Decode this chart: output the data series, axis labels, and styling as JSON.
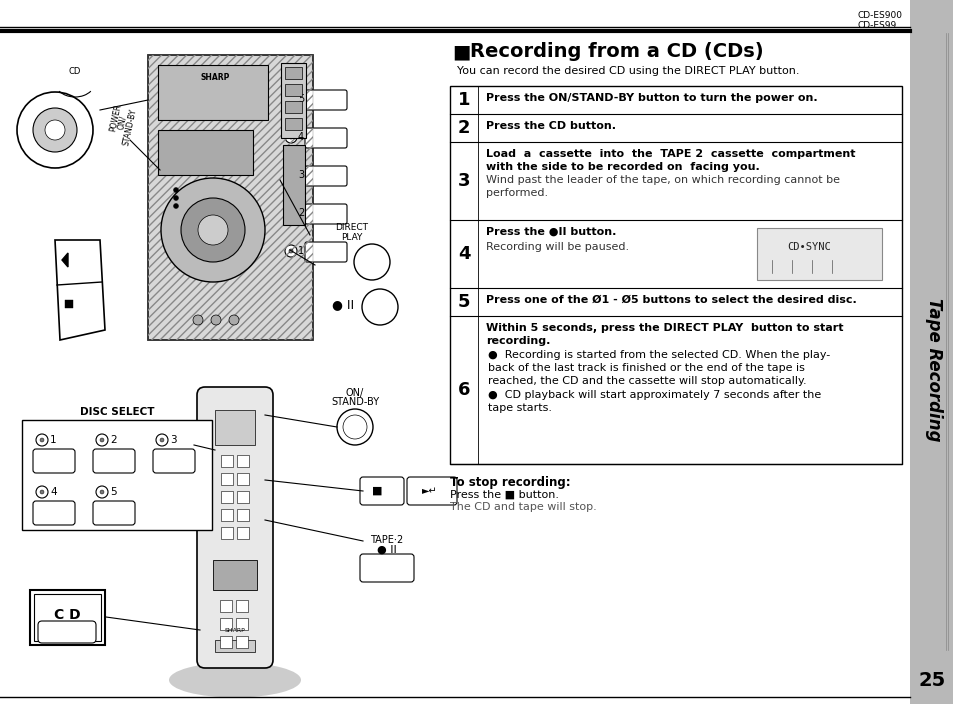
{
  "title": "Recording from a CD (CDs)",
  "subtitle": "You can record the desired CD using the DIRECT PLAY button.",
  "model_top_right": [
    "CD-ES900",
    "CD-ES99"
  ],
  "page_number": "25",
  "side_label": "Tape Recording",
  "stop_recording_title": "To stop recording:",
  "stop_recording_lines": [
    "Press the ■ button.",
    "The CD and tape will stop."
  ],
  "bg_color": "#ffffff",
  "text_color": "#000000",
  "sidebar_color": "#b8b8b8",
  "step1_bold": "Press the ON/STAND-BY button to turn the power on.",
  "step2_bold": "Press the CD button.",
  "step3_bold": "Load  a  cassette  into  the  TAPE 2  cassette  compartment\nwith the side to be recorded on  facing you.",
  "step3_normal": "Wind past the leader of the tape, on which recording cannot be\nperformed.",
  "step4_bold": "Press the ●II button.",
  "step4_normal": "Recording will be paused.",
  "step5_bold": "Press one of the Ø1 - Ø5 buttons to select the desired disc.",
  "step6_bold": "Within 5 seconds, press the DIRECT PLAY  button to start\nrecording.",
  "step6_bullet1": "Recording is started from the selected CD. When the play-\nback of the last track is finished or the end of the tape is\nreached, the CD and the cassette will stop automatically.",
  "step6_bullet2": "CD playback will start approximately 7 seconds after the\ntape starts."
}
